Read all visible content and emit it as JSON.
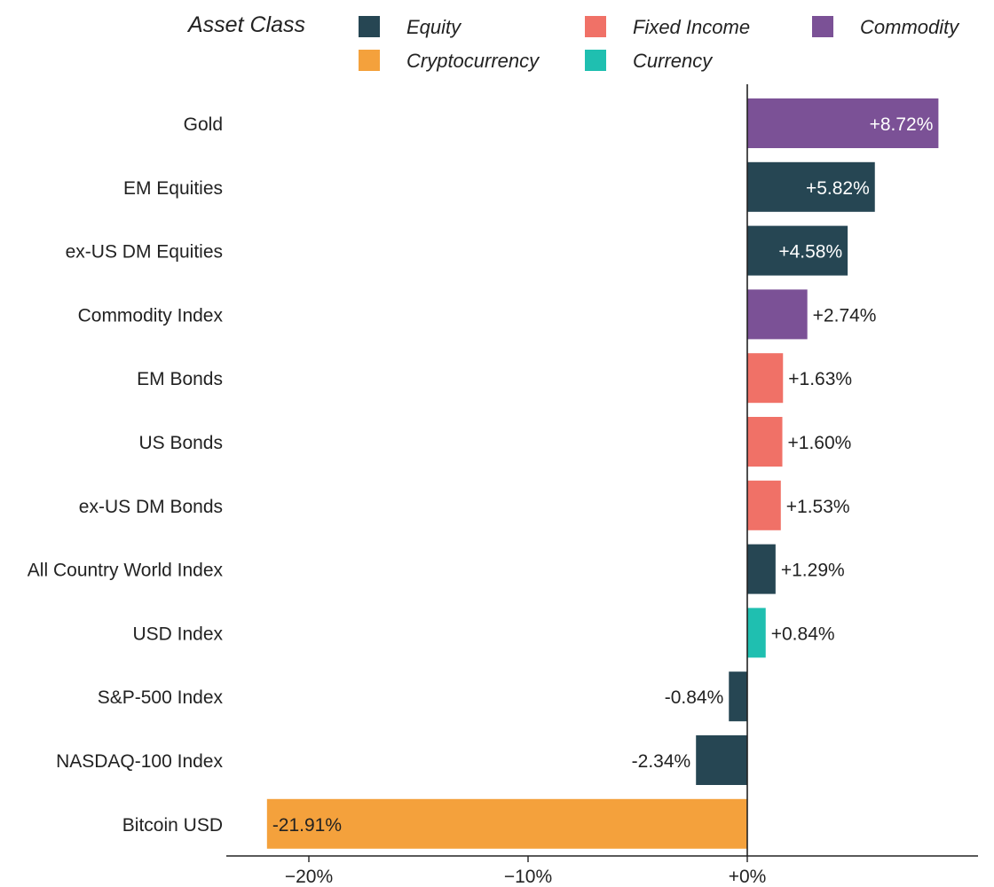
{
  "chart_data": {
    "type": "bar",
    "orientation": "horizontal",
    "legend_title": "Asset Class",
    "legend": [
      {
        "name": "Equity",
        "color": "#264653"
      },
      {
        "name": "Fixed Income",
        "color": "#f07167"
      },
      {
        "name": "Commodity",
        "color": "#7b5196"
      },
      {
        "name": "Cryptocurrency",
        "color": "#f4a13c"
      },
      {
        "name": "Currency",
        "color": "#1fbfb0"
      }
    ],
    "categories": [
      "Gold",
      "EM Equities",
      "ex-US DM Equities",
      "Commodity Index",
      "EM Bonds",
      "US Bonds",
      "ex-US DM Bonds",
      "All Country World Index",
      "USD Index",
      "S&P-500 Index",
      "NASDAQ-100 Index",
      "Bitcoin USD"
    ],
    "values": [
      8.72,
      5.82,
      4.58,
      2.74,
      1.63,
      1.6,
      1.53,
      1.29,
      0.84,
      -0.84,
      -2.34,
      -21.91
    ],
    "value_labels": [
      "+8.72%",
      "+5.82%",
      "+4.58%",
      "+2.74%",
      "+1.63%",
      "+1.60%",
      "+1.53%",
      "+1.29%",
      "+0.84%",
      "-0.84%",
      "-2.34%",
      "-21.91%"
    ],
    "asset_class": [
      "Commodity",
      "Equity",
      "Equity",
      "Commodity",
      "Fixed Income",
      "Fixed Income",
      "Fixed Income",
      "Equity",
      "Currency",
      "Equity",
      "Equity",
      "Cryptocurrency"
    ],
    "xlim": [
      -23.5,
      10.5
    ],
    "xticks": [
      -20,
      -10,
      0
    ],
    "xtick_labels": [
      "−20%",
      "−10%",
      "+0%"
    ],
    "xlabel": "",
    "ylabel": "",
    "grid": false
  }
}
